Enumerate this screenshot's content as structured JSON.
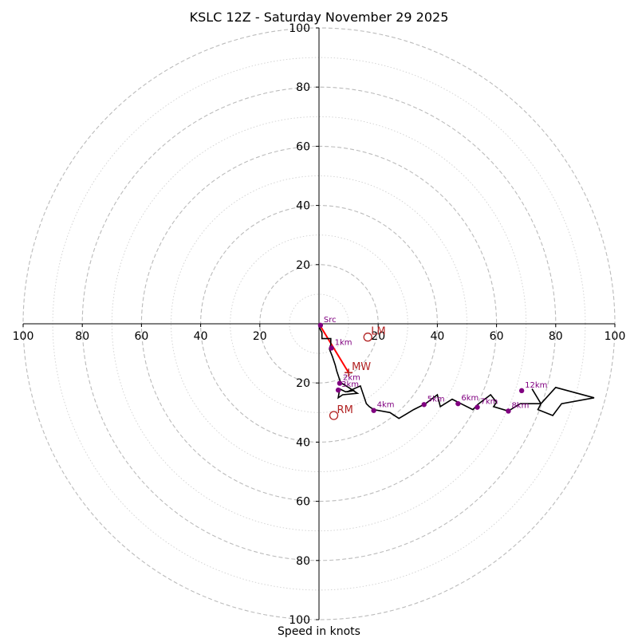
{
  "chart_data": {
    "type": "scatter",
    "subtype": "hodograph",
    "title": "KSLC 12Z - Saturday November 29 2025",
    "xlabel": "Speed in knots",
    "ylabel": "",
    "xlim": [
      -100,
      100
    ],
    "ylim": [
      -100,
      100
    ],
    "tick_labels": [
      "100",
      "80",
      "60",
      "40",
      "20",
      "20",
      "40",
      "60",
      "80",
      "100"
    ],
    "ring_major_step": 20,
    "ring_minor_step": 10,
    "grid": true,
    "trace": [
      [
        0,
        0
      ],
      [
        0,
        -1
      ],
      [
        1,
        -3
      ],
      [
        1,
        -5
      ],
      [
        4,
        -5
      ],
      [
        4,
        -7
      ],
      [
        3.5,
        -8.5
      ],
      [
        4.5,
        -11
      ],
      [
        5.5,
        -14
      ],
      [
        6,
        -16
      ],
      [
        7,
        -19
      ],
      [
        7.5,
        -20
      ],
      [
        10,
        -21.5
      ],
      [
        13,
        -23.5
      ],
      [
        8,
        -24
      ],
      [
        6.5,
        -25
      ],
      [
        7,
        -22
      ],
      [
        9,
        -23
      ],
      [
        12,
        -22.5
      ],
      [
        9.5,
        -23
      ],
      [
        14,
        -21
      ],
      [
        16,
        -27
      ],
      [
        17,
        -28
      ],
      [
        18.5,
        -29
      ],
      [
        24,
        -30
      ],
      [
        27,
        -32
      ],
      [
        32,
        -29
      ],
      [
        36,
        -27
      ],
      [
        40,
        -24
      ],
      [
        41,
        -28
      ],
      [
        45,
        -25.5
      ],
      [
        48,
        -27
      ],
      [
        52,
        -29
      ],
      [
        54,
        -27
      ],
      [
        58,
        -24
      ],
      [
        60,
        -26.5
      ],
      [
        59,
        -28
      ],
      [
        64,
        -29.5
      ],
      [
        68,
        -27
      ],
      [
        75,
        -27
      ],
      [
        80,
        -21.5
      ],
      [
        93,
        -25
      ],
      [
        82,
        -27
      ],
      [
        79,
        -31
      ],
      [
        74,
        -29
      ],
      [
        75,
        -27
      ],
      [
        72,
        -22
      ]
    ],
    "height_markers": [
      {
        "label": "Src",
        "u": 0.5,
        "v": -0.5
      },
      {
        "label": "1km",
        "u": 4.2,
        "v": -8.2
      },
      {
        "label": "2km",
        "u": 7.0,
        "v": -20.1
      },
      {
        "label": "3km",
        "u": 6.5,
        "v": -22.4
      },
      {
        "label": "4km",
        "u": 18.5,
        "v": -29.3
      },
      {
        "label": "5km",
        "u": 35.5,
        "v": -27.3
      },
      {
        "label": "6km",
        "u": 47.0,
        "v": -27.0
      },
      {
        "label": "7km",
        "u": 53.5,
        "v": -28.2
      },
      {
        "label": "8km",
        "u": 64.0,
        "v": -29.5
      },
      {
        "label": "12km",
        "u": 68.5,
        "v": -22.6
      }
    ],
    "storm_motion": [
      {
        "label": "LM",
        "u": 16.5,
        "v": -4.5
      },
      {
        "label": "MW",
        "u": 10.0,
        "v": -16.5
      },
      {
        "label": "RM",
        "u": 5.0,
        "v": -31.0
      }
    ],
    "shear_line": [
      [
        0,
        0
      ],
      [
        10.0,
        -16.5
      ]
    ],
    "colors": {
      "trace": "#000000",
      "height_marker": "#800080",
      "storm_motion": "#b22222",
      "shear_line": "#ff0000",
      "ring_major": "#bbbbbb",
      "ring_minor": "#d0d0d0"
    }
  }
}
